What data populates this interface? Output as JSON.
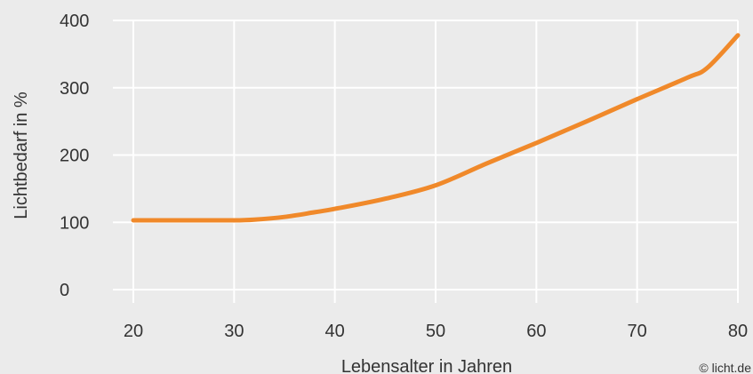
{
  "chart_data": {
    "type": "line",
    "title": "",
    "xlabel": "Lebensalter in Jahren",
    "ylabel": "Lichtbedarf in %",
    "xlim": [
      20,
      80
    ],
    "ylim": [
      0,
      400
    ],
    "x_ticks": [
      20,
      30,
      40,
      50,
      60,
      70,
      80
    ],
    "y_ticks": [
      0,
      100,
      200,
      300,
      400
    ],
    "x_tick_labels": [
      "20",
      "30",
      "40",
      "50",
      "60",
      "70",
      "80"
    ],
    "y_tick_labels": [
      "0",
      "100",
      "200",
      "300",
      "400"
    ],
    "grid": true,
    "legend": "none",
    "series": [
      {
        "color": "#f0892a",
        "x": [
          20,
          25,
          30,
          32,
          35,
          38,
          40,
          45,
          50,
          55,
          60,
          65,
          70,
          75,
          77,
          80
        ],
        "y": [
          103,
          103,
          103,
          104,
          108,
          115,
          120,
          135,
          155,
          187,
          218,
          250,
          283,
          315,
          330,
          378
        ]
      }
    ]
  },
  "credit": "© licht.de",
  "colors": {
    "background": "#ebebeb",
    "grid": "#ffffff",
    "line": "#f0892a",
    "text": "#333333"
  }
}
